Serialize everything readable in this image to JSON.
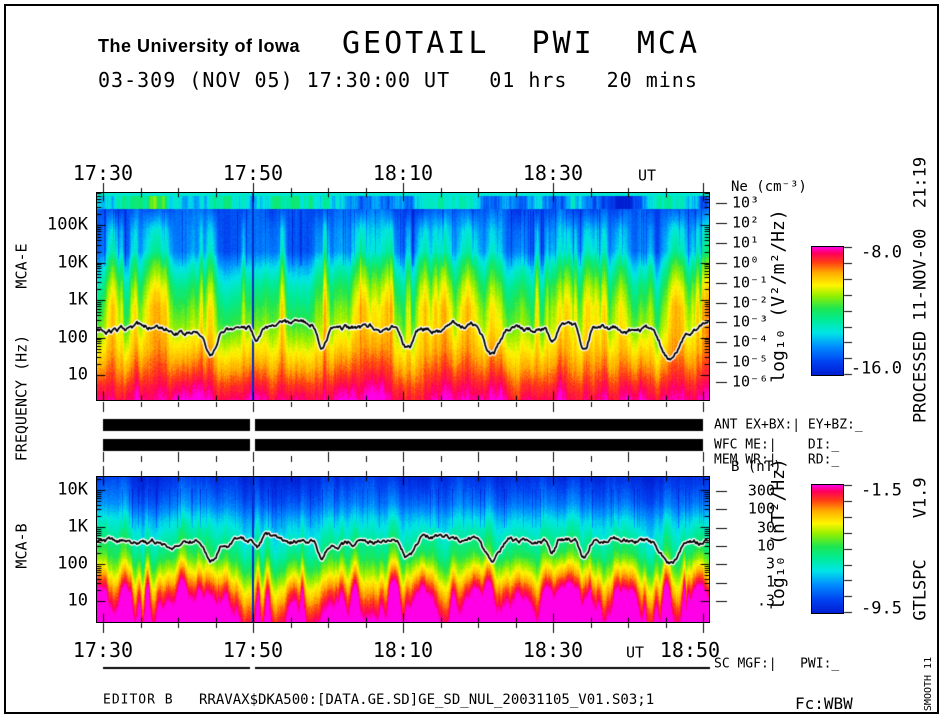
{
  "header": {
    "institution": "The University of Iowa",
    "title": "GEOTAIL  PWI  MCA",
    "subtitle": "03-309 (NOV 05) 17:30:00 UT   01 hrs   20 mins"
  },
  "time_axis": {
    "unit": "UT",
    "ticks": [
      "17:30",
      "17:50",
      "18:10",
      "18:30"
    ],
    "end_tick": "18:50"
  },
  "left_axis": {
    "title": "FREQUENCY (Hz)",
    "mca_e_label": "MCA-E",
    "mca_b_label": "MCA-B",
    "e_ticks": [
      "100K",
      "10K",
      "1K",
      "100",
      "10"
    ],
    "b_ticks": [
      "10K",
      "1K",
      "100",
      "10"
    ]
  },
  "right_axis_e": {
    "title": "Ne (cm⁻³)",
    "ticks": [
      "10³",
      "10²",
      "10¹",
      "10⁰",
      "10⁻¹",
      "10⁻²",
      "10⁻³",
      "10⁻⁴",
      "10⁻⁵",
      "10⁻⁶"
    ]
  },
  "right_axis_b": {
    "title": "B (nT)",
    "ticks": [
      "300",
      "100",
      "30",
      "10",
      "3",
      "1",
      ".3"
    ]
  },
  "colorbar_e": {
    "label": "log₁₀ (V²/m²/Hz)",
    "max_label": "-8.0",
    "min_label": "-16.0"
  },
  "colorbar_b": {
    "label": "log₁₀ (nT²/Hz)",
    "max_label": "-1.5",
    "min_label": "-9.5"
  },
  "status_rows": {
    "row1": "ANT EX+BX:| EY+BZ:_",
    "row2": "WFC ME:|    DI:_",
    "row3": "MEM WR:|    RD:_",
    "mgf": "SC MGF:|   PWI:_"
  },
  "footer": {
    "editor": "EDITOR B",
    "file": "RRAVAX$DKA500:[DATA.GE.SD]GE_SD_NUL_20031105_V01.S03;1",
    "receiver": "Fc:WBW"
  },
  "right_margin": {
    "processed": "PROCESSED 11-NOV-00  21:19",
    "program": "GTLSPC    V1.9",
    "smooth": "SMOOTH 11"
  },
  "palette": {
    "stops": [
      [
        0.0,
        "#001ed2"
      ],
      [
        0.1,
        "#0041f0"
      ],
      [
        0.22,
        "#008cff"
      ],
      [
        0.33,
        "#00e6e6"
      ],
      [
        0.43,
        "#00eb96"
      ],
      [
        0.52,
        "#1ee650"
      ],
      [
        0.62,
        "#96f000"
      ],
      [
        0.7,
        "#fff500"
      ],
      [
        0.8,
        "#ffaa00"
      ],
      [
        0.88,
        "#ff3c14"
      ],
      [
        0.95,
        "#ff005a"
      ],
      [
        1.0,
        "#ff00e6"
      ]
    ]
  },
  "chart_data": [
    {
      "type": "heatmap",
      "panel": "MCA-E",
      "title": "GEOTAIL PWI MCA electric-field spectrogram",
      "date": "2003 day 309 (NOV 05)",
      "x_axis": {
        "label": "UT",
        "start": "17:30",
        "end": "18:50",
        "major_ticks": [
          "17:30",
          "17:50",
          "18:10",
          "18:30",
          "18:50"
        ],
        "minor_tick_interval_minutes": 5,
        "duration": "01 hrs 20 mins"
      },
      "y_axis": {
        "label": "FREQUENCY (Hz)",
        "scale": "log",
        "ticks": [
          "10",
          "100",
          "1K",
          "10K",
          "100K"
        ],
        "range_hz": [
          5,
          400000
        ]
      },
      "z_axis": {
        "label": "log₁₀ (V²/m²/Hz)",
        "range": [
          -16.0,
          -8.0
        ],
        "palette_low_to_high": [
          "blue",
          "cyan",
          "green",
          "yellow",
          "orange",
          "red",
          "magenta"
        ]
      },
      "right_axis": {
        "label": "Ne (cm⁻³)",
        "scale": "log",
        "ticks": [
          "10³",
          "10²",
          "10¹",
          "10⁰",
          "10⁻¹",
          "10⁻²",
          "10⁻³",
          "10⁻⁴",
          "10⁻⁵",
          "10⁻⁶"
        ]
      },
      "overlay_trace": "black-on-white electron density / plasma-frequency line jittering around 300-600 Hz with downward dips",
      "features": [
        "intense broadband emission below ~1 kHz grading yellow-orange-red to magenta at lowest frequencies",
        "dark blue quiet band ~2-60 kHz pierced by intermittent cyan/green vertical bursts",
        "patchy cyan band above ~100 kHz, more uniform dark blue after ~18:35",
        "narrow dark vertical data gap near 17:50"
      ]
    },
    {
      "type": "heatmap",
      "panel": "MCA-B",
      "title": "GEOTAIL PWI MCA magnetic-field spectrogram",
      "x_axis": {
        "label": "UT",
        "start": "17:30",
        "end": "18:50",
        "major_ticks": [
          "17:30",
          "17:50",
          "18:10",
          "18:30",
          "18:50"
        ],
        "minor_tick_interval_minutes": 5
      },
      "y_axis": {
        "label": "FREQUENCY (Hz)",
        "scale": "log",
        "ticks": [
          "10",
          "100",
          "1K",
          "10K"
        ],
        "range_hz": [
          5,
          20000
        ]
      },
      "z_axis": {
        "label": "log₁₀ (nT²/Hz)",
        "range": [
          -9.5,
          -1.5
        ],
        "palette_low_to_high": [
          "blue",
          "cyan",
          "green",
          "yellow",
          "orange",
          "red",
          "magenta"
        ]
      },
      "right_axis": {
        "label": "B (nT)",
        "scale": "log",
        "ticks": [
          "300",
          "100",
          "30",
          "10",
          "3",
          "1",
          ".3"
        ]
      },
      "overlay_trace": "black-on-white magnetic field magnitude line jittering around 300-500 Hz equivalent position",
      "features": [
        "dark blue above ~1 kHz fading to cyan mid-band",
        "green/yellow band below ~100 Hz with red-magenta plumes at lowest frequencies",
        "narrow dark vertical data gap near 17:50"
      ]
    },
    {
      "type": "status-bars",
      "rows": [
        {
          "label": "ANT EX+BX:| EY+BZ:_",
          "state": "solid black bar 17:30-18:50 with short gap near 17:49"
        },
        {
          "label": "WFC ME:|    DI:_",
          "state": "solid black bar 17:30-18:50 with short gap near 17:49"
        },
        {
          "label": "MEM WR:|    RD:_",
          "state": "tick marks every 5 minutes, taller every 10 minutes"
        },
        {
          "label": "SC MGF:|   PWI:_",
          "state": "thin continuous line with short gap near 17:49"
        }
      ]
    }
  ]
}
